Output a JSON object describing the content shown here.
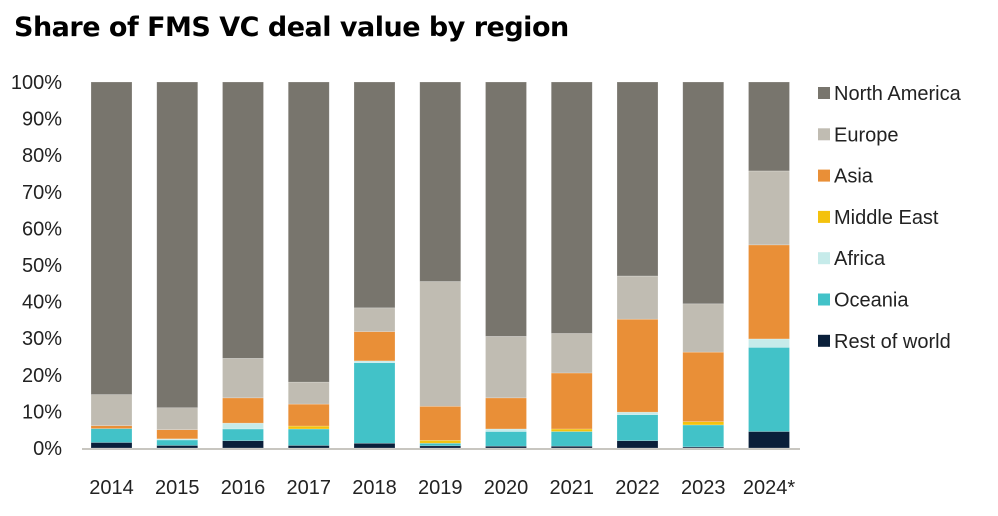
{
  "chart_data": {
    "type": "bar",
    "stacked": true,
    "title": "Share of FMS VC deal value by region",
    "xlabel": "",
    "ylabel": "",
    "ylim": [
      0,
      100
    ],
    "yticks": [
      "0%",
      "10%",
      "20%",
      "30%",
      "40%",
      "50%",
      "60%",
      "70%",
      "80%",
      "90%",
      "100%"
    ],
    "categories": [
      "2014",
      "2015",
      "2016",
      "2017",
      "2018",
      "2019",
      "2020",
      "2021",
      "2022",
      "2023",
      "2024*"
    ],
    "legend_position": "right",
    "series": [
      {
        "name": "Rest of world",
        "color": "#0a1f3a",
        "values": [
          1.5,
          0.7,
          2.0,
          0.7,
          1.3,
          0.6,
          0.5,
          0.5,
          2.0,
          0.3,
          4.5
        ]
      },
      {
        "name": "Oceania",
        "color": "#42c2c8",
        "values": [
          3.8,
          1.5,
          3.2,
          4.5,
          22.0,
          0.7,
          4.0,
          4.0,
          7.1,
          6.0,
          23.0
        ]
      },
      {
        "name": "Africa",
        "color": "#c6ebea",
        "values": [
          0,
          0.3,
          1.6,
          0,
          0.5,
          0,
          0.7,
          0,
          0.7,
          0,
          2.3
        ]
      },
      {
        "name": "Middle East",
        "color": "#f4c20d",
        "values": [
          0,
          0,
          0,
          0.8,
          0,
          0.8,
          0,
          0.7,
          0,
          0.9,
          0
        ]
      },
      {
        "name": "Asia",
        "color": "#e98f37",
        "values": [
          0.8,
          2.5,
          6.9,
          6.0,
          8.0,
          9.3,
          8.5,
          15.3,
          25.4,
          19.0,
          25.7
        ]
      },
      {
        "name": "Europe",
        "color": "#c0bcb2",
        "values": [
          8.5,
          6.0,
          10.8,
          6.0,
          6.5,
          34.1,
          16.8,
          10.8,
          11.8,
          13.2,
          20.2
        ]
      },
      {
        "name": "North America",
        "color": "#78756d",
        "values": [
          85.4,
          89.0,
          75.5,
          82.0,
          61.7,
          54.5,
          69.5,
          68.7,
          53.0,
          60.6,
          24.3
        ]
      }
    ]
  }
}
